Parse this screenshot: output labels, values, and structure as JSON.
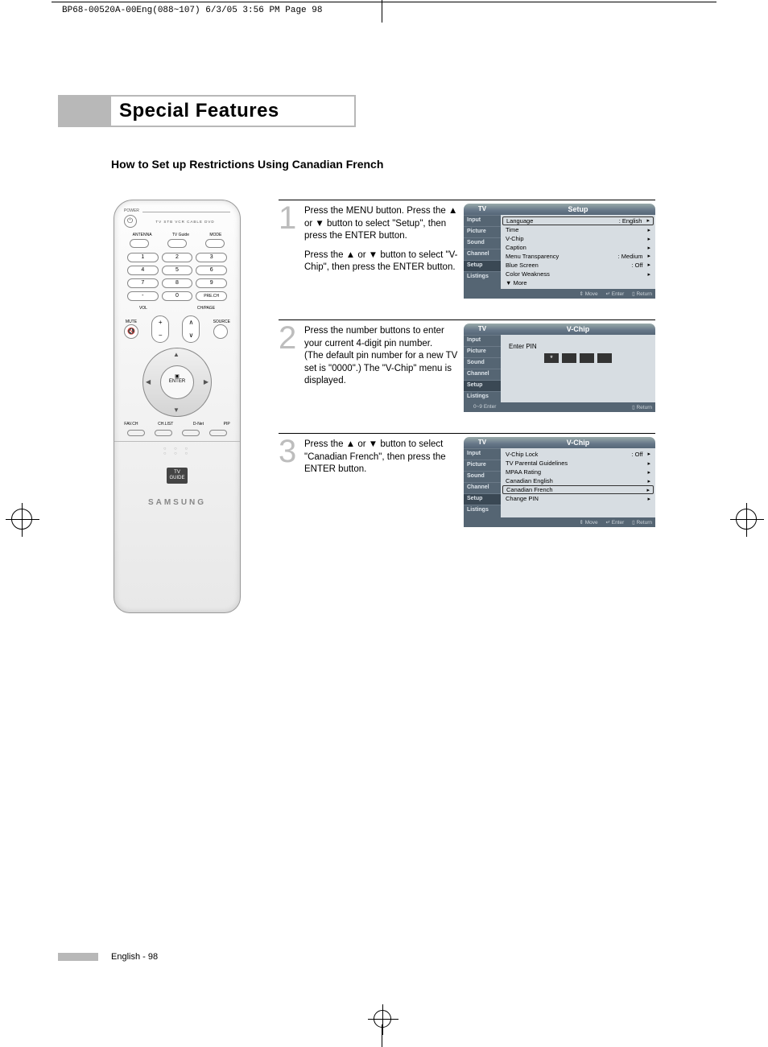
{
  "crop_header": "BP68-00520A-00Eng(088~107)  6/3/05  3:56 PM  Page 98",
  "section_title": "Special Features",
  "subtitle": "How to Set up Restrictions Using Canadian French",
  "page_footer": "English - 98",
  "remote": {
    "power_label": "POWER",
    "mode_row": "TV  STB  VCR  CABLE  DVD",
    "row_labels": [
      "ANTENNA",
      "TV Guide",
      "MODE"
    ],
    "numbers": [
      "1",
      "2",
      "3",
      "4",
      "5",
      "6",
      "7",
      "8",
      "9",
      "-",
      "0",
      "PRE.CH"
    ],
    "vol": "VOL",
    "chpage": "CH/PAGE",
    "mute": "MUTE",
    "source": "SOURCE",
    "enter": "ENTER",
    "bottom": [
      "FAV.CH",
      "CH.LIST",
      "D-Net",
      "PIP"
    ],
    "guide": "TV\nGUIDE",
    "brand": "SAMSUNG"
  },
  "steps": [
    {
      "num": "1",
      "paras": [
        "Press the MENU button. Press the ▲ or ▼ button to select \"Setup\", then press the ENTER button.",
        "Press the ▲ or ▼ button to select \"V-Chip\", then press the ENTER button."
      ]
    },
    {
      "num": "2",
      "paras": [
        "Press the number buttons to enter your current 4-digit pin number.\n(The default pin number for a new TV set is \"0000\".) The \"V-Chip\" menu is displayed."
      ]
    },
    {
      "num": "3",
      "paras": [
        "Press the ▲ or ▼ button to select \"Canadian French\", then press the ENTER button."
      ]
    }
  ],
  "osd_side": [
    "Input",
    "Picture",
    "Sound",
    "Channel",
    "Setup",
    "Listings"
  ],
  "osd1": {
    "tv": "TV",
    "title": "Setup",
    "rows": [
      {
        "l": "Language",
        "v": ": English",
        "sel": true
      },
      {
        "l": "Time",
        "v": ""
      },
      {
        "l": "V-Chip",
        "v": ""
      },
      {
        "l": "Caption",
        "v": ""
      },
      {
        "l": "Menu Transparency",
        "v": ": Medium"
      },
      {
        "l": "Blue Screen",
        "v": ": Off"
      },
      {
        "l": "Color Weakness",
        "v": ""
      },
      {
        "l": "▼ More",
        "v": "",
        "noarrow": true
      }
    ],
    "footer": [
      "⇕ Move",
      "↵ Enter",
      "▯ Return"
    ]
  },
  "osd2": {
    "tv": "TV",
    "title": "V-Chip",
    "prompt": "Enter PIN",
    "footer": [
      "0~9 Enter",
      "",
      "▯ Return"
    ]
  },
  "osd3": {
    "tv": "TV",
    "title": "V-Chip",
    "rows": [
      {
        "l": "V-Chip Lock",
        "v": ": Off"
      },
      {
        "l": "TV Parental Guidelines",
        "v": ""
      },
      {
        "l": "MPAA Rating",
        "v": ""
      },
      {
        "l": "Canadian English",
        "v": ""
      },
      {
        "l": "Canadian French",
        "v": "",
        "sel": true
      },
      {
        "l": "Change PIN",
        "v": ""
      }
    ],
    "footer": [
      "⇕ Move",
      "↵ Enter",
      "▯ Return"
    ]
  }
}
